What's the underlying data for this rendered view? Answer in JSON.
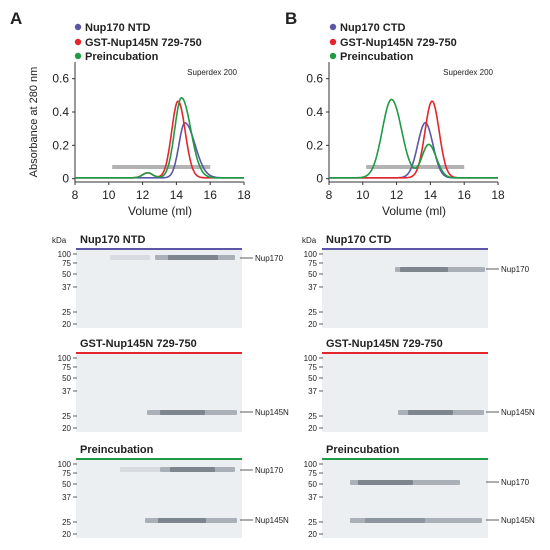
{
  "panels": [
    {
      "letter": "A",
      "legend": [
        {
          "label": "Nup170 NTD",
          "color": "#5b57a6"
        },
        {
          "label": "GST-Nup145N 729-750",
          "color": "#e3262b"
        },
        {
          "label": "Preincubation",
          "color": "#1f9a45"
        }
      ],
      "column_label": "Superdex 200",
      "gels": [
        {
          "title": "Nup170 NTD",
          "color": "#5b57a6",
          "bands": [
            {
              "label": "Nup170",
              "kda": 100
            }
          ]
        },
        {
          "title": "GST-Nup145N 729-750",
          "color": "#e3262b",
          "bands": [
            {
              "label": "Nup145N",
              "kda": 28
            }
          ]
        },
        {
          "title": "Preincubation",
          "color": "#1f9a45",
          "bands": [
            {
              "label": "Nup170",
              "kda": 100
            },
            {
              "label": "Nup145N",
              "kda": 28
            }
          ]
        }
      ]
    },
    {
      "letter": "B",
      "legend": [
        {
          "label": "Nup170 CTD",
          "color": "#5b57a6"
        },
        {
          "label": "GST-Nup145N 729-750",
          "color": "#e3262b"
        },
        {
          "label": "Preincubation",
          "color": "#1f9a45"
        }
      ],
      "column_label": "Superdex 200",
      "gels": [
        {
          "title": "Nup170 CTD",
          "color": "#5b57a6",
          "bands": [
            {
              "label": "Nup170",
              "kda": 65
            }
          ]
        },
        {
          "title": "GST-Nup145N 729-750",
          "color": "#e3262b",
          "bands": [
            {
              "label": "Nup145N",
              "kda": 28
            }
          ]
        },
        {
          "title": "Preincubation",
          "color": "#1f9a45",
          "bands": [
            {
              "label": "Nup170",
              "kda": 65
            },
            {
              "label": "Nup145N",
              "kda": 28
            }
          ]
        }
      ]
    }
  ],
  "kda_label": "kDa",
  "markers": [
    "100",
    "75",
    "50",
    "37",
    "25",
    "20"
  ],
  "chart_data": [
    {
      "type": "line",
      "xlabel": "Volume (ml)",
      "ylabel": "Absorbance at 280 nm",
      "xlim": [
        8,
        18
      ],
      "ylim": [
        -0.02,
        0.7
      ],
      "xticks": [
        8,
        10,
        12,
        14,
        16,
        18
      ],
      "yticks": [
        0,
        0.2,
        0.4,
        0.6
      ],
      "fraction_range": [
        10.2,
        16.0
      ],
      "series": [
        {
          "name": "Nup170 NTD",
          "color": "#5b57a6",
          "peaks": [
            {
              "x": 14.5,
              "h": 0.33,
              "sl": 0.35,
              "sr": 0.6
            }
          ]
        },
        {
          "name": "GST-Nup145N 729-750",
          "color": "#e3262b",
          "peaks": [
            {
              "x": 14.1,
              "h": 0.46,
              "sl": 0.38,
              "sr": 0.42
            },
            {
              "x": 12.3,
              "h": 0.03,
              "sl": 0.3,
              "sr": 0.3
            }
          ]
        },
        {
          "name": "Preincubation",
          "color": "#1f9a45",
          "peaks": [
            {
              "x": 14.3,
              "h": 0.48,
              "sl": 0.4,
              "sr": 0.55
            },
            {
              "x": 12.3,
              "h": 0.03,
              "sl": 0.3,
              "sr": 0.3
            }
          ]
        }
      ]
    },
    {
      "type": "line",
      "xlabel": "Volume (ml)",
      "ylabel": "",
      "xlim": [
        8,
        18
      ],
      "ylim": [
        -0.02,
        0.7
      ],
      "xticks": [
        8,
        10,
        12,
        14,
        16,
        18
      ],
      "yticks": [
        0,
        0.2,
        0.4,
        0.6
      ],
      "fraction_range": [
        10.2,
        16.0
      ],
      "series": [
        {
          "name": "Nup170 CTD",
          "color": "#5b57a6",
          "peaks": [
            {
              "x": 13.7,
              "h": 0.33,
              "sl": 0.45,
              "sr": 0.45
            }
          ]
        },
        {
          "name": "GST-Nup145N 729-750",
          "color": "#e3262b",
          "peaks": [
            {
              "x": 14.1,
              "h": 0.46,
              "sl": 0.42,
              "sr": 0.42
            }
          ]
        },
        {
          "name": "Preincubation",
          "color": "#1f9a45",
          "peaks": [
            {
              "x": 11.7,
              "h": 0.47,
              "sl": 0.55,
              "sr": 0.6
            },
            {
              "x": 13.9,
              "h": 0.2,
              "sl": 0.4,
              "sr": 0.45
            }
          ]
        }
      ]
    }
  ]
}
